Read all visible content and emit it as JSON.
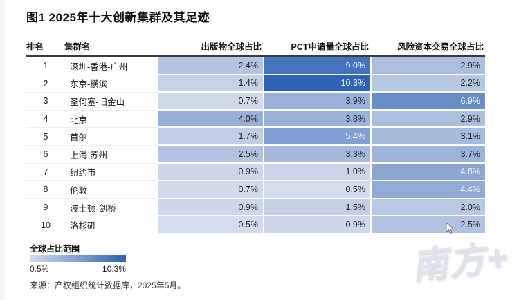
{
  "page": {
    "title": "图1 2025年十大创新集群及其足迹"
  },
  "chart_data": {
    "type": "heatmap",
    "title": "图1 2025年十大创新集群及其足迹",
    "columns": [
      "排名",
      "集群名",
      "出版物全球占比",
      "PCT申请量全球占比",
      "风险资本交易全球占比"
    ],
    "rows": [
      {
        "rank": "1",
        "name": "深圳-香港-广州",
        "values": [
          2.4,
          9.0,
          2.9
        ]
      },
      {
        "rank": "2",
        "name": "东京-横滨",
        "values": [
          1.4,
          10.3,
          2.2
        ]
      },
      {
        "rank": "3",
        "name": "圣何塞-旧金山",
        "values": [
          0.7,
          3.9,
          6.9
        ]
      },
      {
        "rank": "4",
        "name": "北京",
        "values": [
          4.0,
          3.8,
          2.9
        ]
      },
      {
        "rank": "5",
        "name": "首尔",
        "values": [
          1.7,
          5.4,
          3.1
        ]
      },
      {
        "rank": "6",
        "name": "上海-苏州",
        "values": [
          2.5,
          3.3,
          3.7
        ]
      },
      {
        "rank": "7",
        "name": "纽约市",
        "values": [
          0.9,
          1.0,
          4.8
        ]
      },
      {
        "rank": "8",
        "name": "伦敦",
        "values": [
          0.7,
          0.5,
          4.4
        ]
      },
      {
        "rank": "9",
        "name": "波士顿-剑桥",
        "values": [
          0.9,
          1.5,
          2.0
        ]
      },
      {
        "rank": "10",
        "name": "洛杉矶",
        "values": [
          0.5,
          0.9,
          2.5
        ]
      }
    ],
    "color_scale": {
      "label": "全球占比范围",
      "min_value": 0.5,
      "max_value": 10.3,
      "min_label": "0.5%",
      "max_label": "10.3%",
      "min_color": "#d3dcec",
      "max_color": "#2e62b4",
      "white_text_threshold": 4.2
    },
    "legend_position": "bottom-left",
    "source": "来源：产权组织统计数据库，2025年5月。"
  },
  "watermark": "南方+"
}
